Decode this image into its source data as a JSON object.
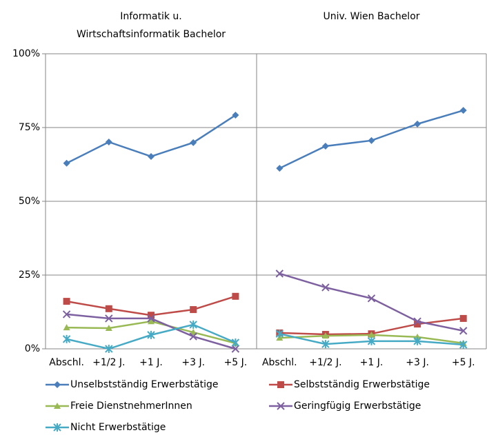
{
  "chart_data": {
    "type": "line",
    "ylim": [
      0,
      100
    ],
    "yticks": [
      {
        "value": 0,
        "label": "0%"
      },
      {
        "value": 25,
        "label": "25%"
      },
      {
        "value": 50,
        "label": "50%"
      },
      {
        "value": 75,
        "label": "75%"
      },
      {
        "value": 100,
        "label": "100%"
      }
    ],
    "grid": true,
    "legend": "bottom",
    "series": [
      {
        "name": "Unselbstständig Erwerbstätige",
        "color": "#4a7ebb",
        "marker": "diamond"
      },
      {
        "name": "Selbstständig Erwerbstätige",
        "color": "#be4b48",
        "marker": "square"
      },
      {
        "name": "Freie DienstnehmerInnen",
        "color": "#98b954",
        "marker": "triangle"
      },
      {
        "name": "Geringfügig Erwerbstätige",
        "color": "#7d60a0",
        "marker": "x"
      },
      {
        "name": "Nicht Erwerbstätige",
        "color": "#46aac5",
        "marker": "star"
      }
    ],
    "panels": [
      {
        "title": [
          "Informatik u.",
          "Wirtschaftsinformatik Bachelor"
        ],
        "categories": [
          "Abschl.",
          "+1/2 J.",
          "+1 J.",
          "+3 J.",
          "+5 J."
        ],
        "series": [
          {
            "values": [
              62.9,
              70.1,
              65.2,
              69.9,
              79.2
            ]
          },
          {
            "values": [
              16.1,
              13.6,
              11.4,
              13.3,
              17.8
            ]
          },
          {
            "values": [
              7.2,
              7.0,
              9.3,
              5.6,
              1.9
            ]
          },
          {
            "values": [
              11.7,
              10.3,
              10.3,
              4.2,
              0
            ]
          },
          {
            "values": [
              3.3,
              0,
              4.7,
              8.2,
              2.1
            ]
          }
        ]
      },
      {
        "title": [
          "Univ. Wien Bachelor"
        ],
        "categories": [
          "Abschl.",
          "+1/2 J.",
          "+1 J.",
          "+3 J.",
          "+5 J."
        ],
        "series": [
          {
            "values": [
              61.2,
              68.7,
              70.6,
              76.2,
              80.8
            ]
          },
          {
            "values": [
              5.4,
              4.9,
              5.1,
              8.4,
              10.3
            ]
          },
          {
            "values": [
              3.7,
              4.4,
              4.7,
              4.0,
              1.9
            ]
          },
          {
            "values": [
              25.5,
              20.8,
              17.1,
              9.3,
              6.1
            ]
          },
          {
            "values": [
              5.1,
              1.6,
              2.6,
              2.6,
              1.4
            ]
          }
        ]
      }
    ]
  }
}
